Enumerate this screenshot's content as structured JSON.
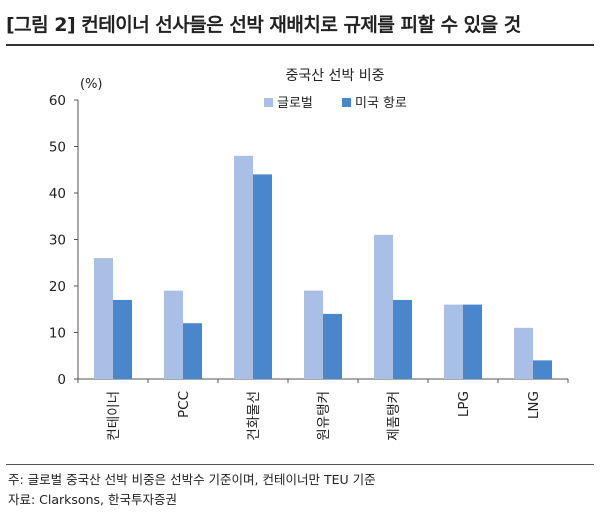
{
  "header": {
    "title": "[그림 2] 컨테이너 선사들은 선박 재배치로 규제를 피할 수 있을 것"
  },
  "footer": {
    "note": "주: 글로벌 중국산 선박 비중은 선박수 기준이며, 컨테이너만 TEU 기준",
    "source": "자료: Clarksons, 한국투자증권"
  },
  "colors": {
    "global": "#a9bfe6",
    "us_route": "#4a86cc",
    "axis": "#555555"
  },
  "chart_data": {
    "type": "bar",
    "title": "중국산 선박 비중",
    "ylabel": "(%)",
    "xlabel": "",
    "ylim": [
      0,
      60
    ],
    "yticks": [
      0,
      10,
      20,
      30,
      40,
      50,
      60
    ],
    "grid": false,
    "legend_position": "top-center",
    "categories": [
      "컨테이너",
      "PCC",
      "건화물선",
      "원유탱커",
      "제품탱커",
      "LPG",
      "LNG"
    ],
    "series": [
      {
        "name": "글로벌",
        "values": [
          26,
          19,
          48,
          19,
          31,
          16,
          11
        ]
      },
      {
        "name": "미국 항로",
        "values": [
          17,
          12,
          44,
          14,
          17,
          16,
          4
        ]
      }
    ]
  }
}
